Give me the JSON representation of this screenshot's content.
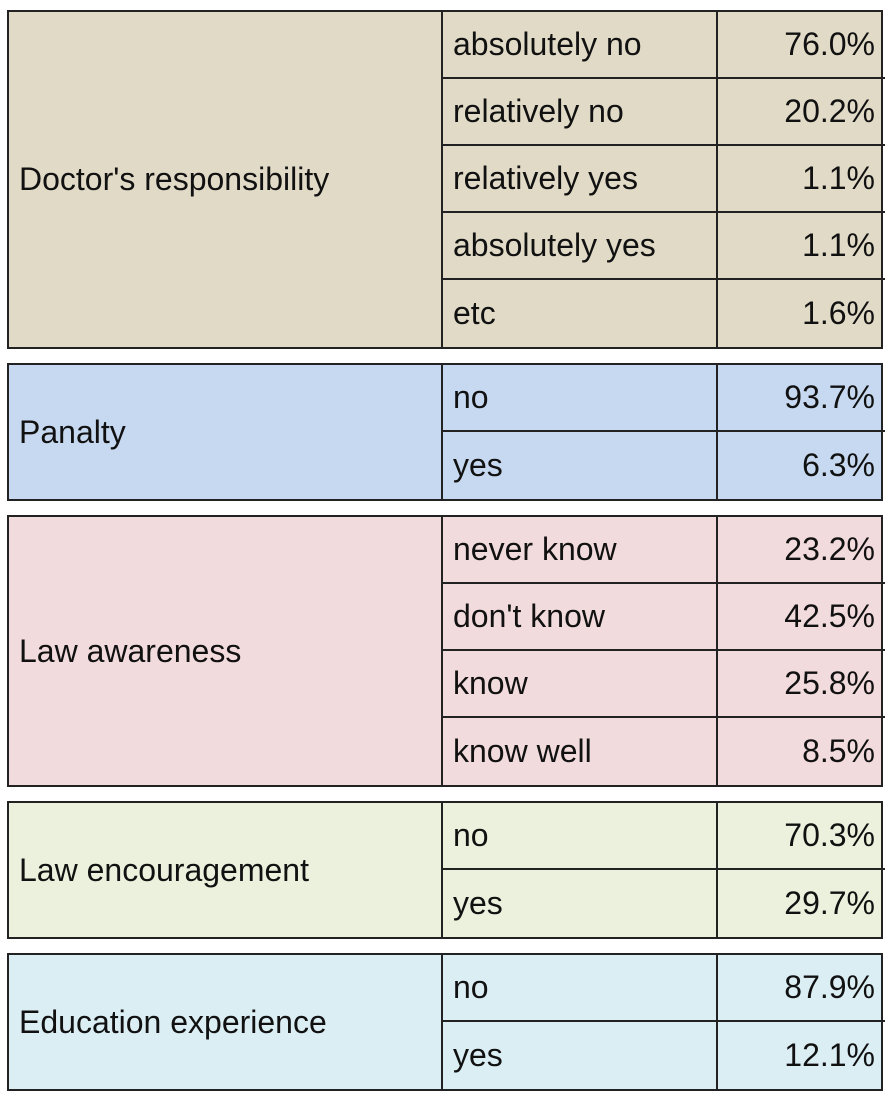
{
  "colors": {
    "doctor": "#e0dac6",
    "panalty": "#c6d9f0",
    "law_awareness": "#f2dbdc",
    "law_encouragement": "#ebf1dd",
    "education": "#dbeef4",
    "border": "#222222"
  },
  "sections": [
    {
      "category": "Doctor's responsibility",
      "rows": [
        {
          "option": "absolutely no",
          "value": "76.0%"
        },
        {
          "option": "relatively no",
          "value": "20.2%"
        },
        {
          "option": "relatively yes",
          "value": "1.1%"
        },
        {
          "option": "absolutely yes",
          "value": "1.1%"
        },
        {
          "option": "etc",
          "value": "1.6%"
        }
      ]
    },
    {
      "category": "Panalty",
      "rows": [
        {
          "option": "no",
          "value": "93.7%"
        },
        {
          "option": "yes",
          "value": "6.3%"
        }
      ]
    },
    {
      "category": "Law awareness",
      "rows": [
        {
          "option": "never know",
          "value": "23.2%"
        },
        {
          "option": "don't know",
          "value": "42.5%"
        },
        {
          "option": "know",
          "value": "25.8%"
        },
        {
          "option": "know well",
          "value": "8.5%"
        }
      ]
    },
    {
      "category": "Law encouragement",
      "rows": [
        {
          "option": "no",
          "value": "70.3%"
        },
        {
          "option": "yes",
          "value": "29.7%"
        }
      ]
    },
    {
      "category": "Education experience",
      "rows": [
        {
          "option": "no",
          "value": "87.9%"
        },
        {
          "option": "yes",
          "value": "12.1%"
        }
      ]
    }
  ]
}
